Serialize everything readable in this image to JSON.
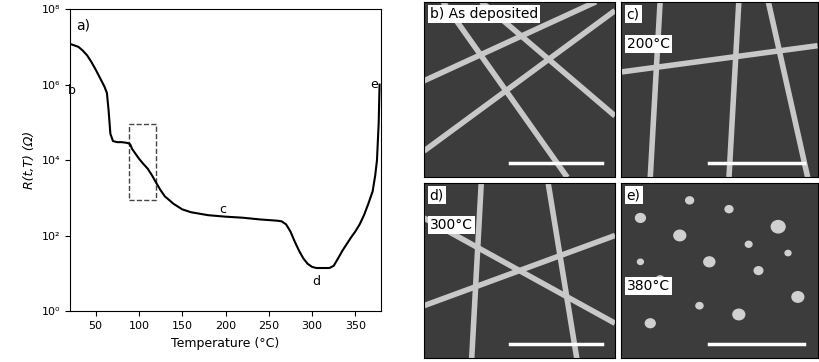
{
  "chart_data": {
    "type": "line",
    "panel": "a)",
    "x_label": "Temperature (°C)",
    "y_label": "R(t,T) (Ω)",
    "log": "y",
    "color": "#000000",
    "x": [
      20,
      25,
      30,
      35,
      40,
      45,
      50,
      55,
      60,
      63,
      65,
      67,
      70,
      75,
      80,
      85,
      88,
      90,
      92,
      95,
      100,
      105,
      110,
      115,
      120,
      125,
      130,
      140,
      150,
      160,
      180,
      200,
      220,
      240,
      250,
      260,
      265,
      270,
      275,
      280,
      285,
      290,
      295,
      300,
      305,
      310,
      315,
      320,
      325,
      330,
      335,
      340,
      345,
      350,
      355,
      360,
      365,
      370,
      373,
      375,
      377,
      378
    ],
    "values": [
      12000000.0,
      11000000.0,
      10000000.0,
      8000000.0,
      6000000.0,
      4000000.0,
      2500000.0,
      1500000.0,
      900000.0,
      600000.0,
      200000.0,
      50000.0,
      32000.0,
      30000.0,
      30000.0,
      29000.0,
      28000.0,
      26000.0,
      20000.0,
      16000.0,
      11000.0,
      8000.0,
      6000.0,
      4000.0,
      2500.0,
      1600.0,
      1100.0,
      700,
      500,
      420,
      350,
      320,
      300,
      270,
      260,
      250,
      240,
      200,
      130,
      70,
      40,
      25,
      18,
      15,
      14,
      14,
      14,
      14,
      16,
      25,
      40,
      60,
      90,
      130,
      200,
      350,
      700,
      1500,
      4000,
      10000.0,
      100000.0,
      1000000.0
    ],
    "xlim": [
      20,
      380
    ],
    "xticks": [
      50,
      100,
      150,
      200,
      250,
      300,
      350
    ],
    "ylim": [
      1,
      100000000
    ],
    "yticks": [
      {
        "value": 1,
        "label": "10⁰"
      },
      {
        "value": 100,
        "label": "10²"
      },
      {
        "value": 10000,
        "label": "10⁴"
      },
      {
        "value": 1000000,
        "label": "10⁶"
      },
      {
        "value": 100000000,
        "label": "10⁸"
      }
    ],
    "annotations": [
      {
        "text": "b",
        "x": 23,
        "y": 700000
      },
      {
        "text": "c",
        "x": 197,
        "y": 500
      },
      {
        "text": "d",
        "x": 305,
        "y": 6
      },
      {
        "text": "e",
        "x": 372,
        "y": 1000000
      }
    ],
    "box": {
      "x": [
        88,
        120
      ],
      "y": [
        900,
        90000
      ]
    },
    "grid": false
  },
  "images": [
    {
      "panel": "b)",
      "caption": "As deposited"
    },
    {
      "panel": "c)",
      "caption": "200°C"
    },
    {
      "panel": "d)",
      "caption": "300°C"
    },
    {
      "panel": "e)",
      "caption": "380°C"
    }
  ]
}
